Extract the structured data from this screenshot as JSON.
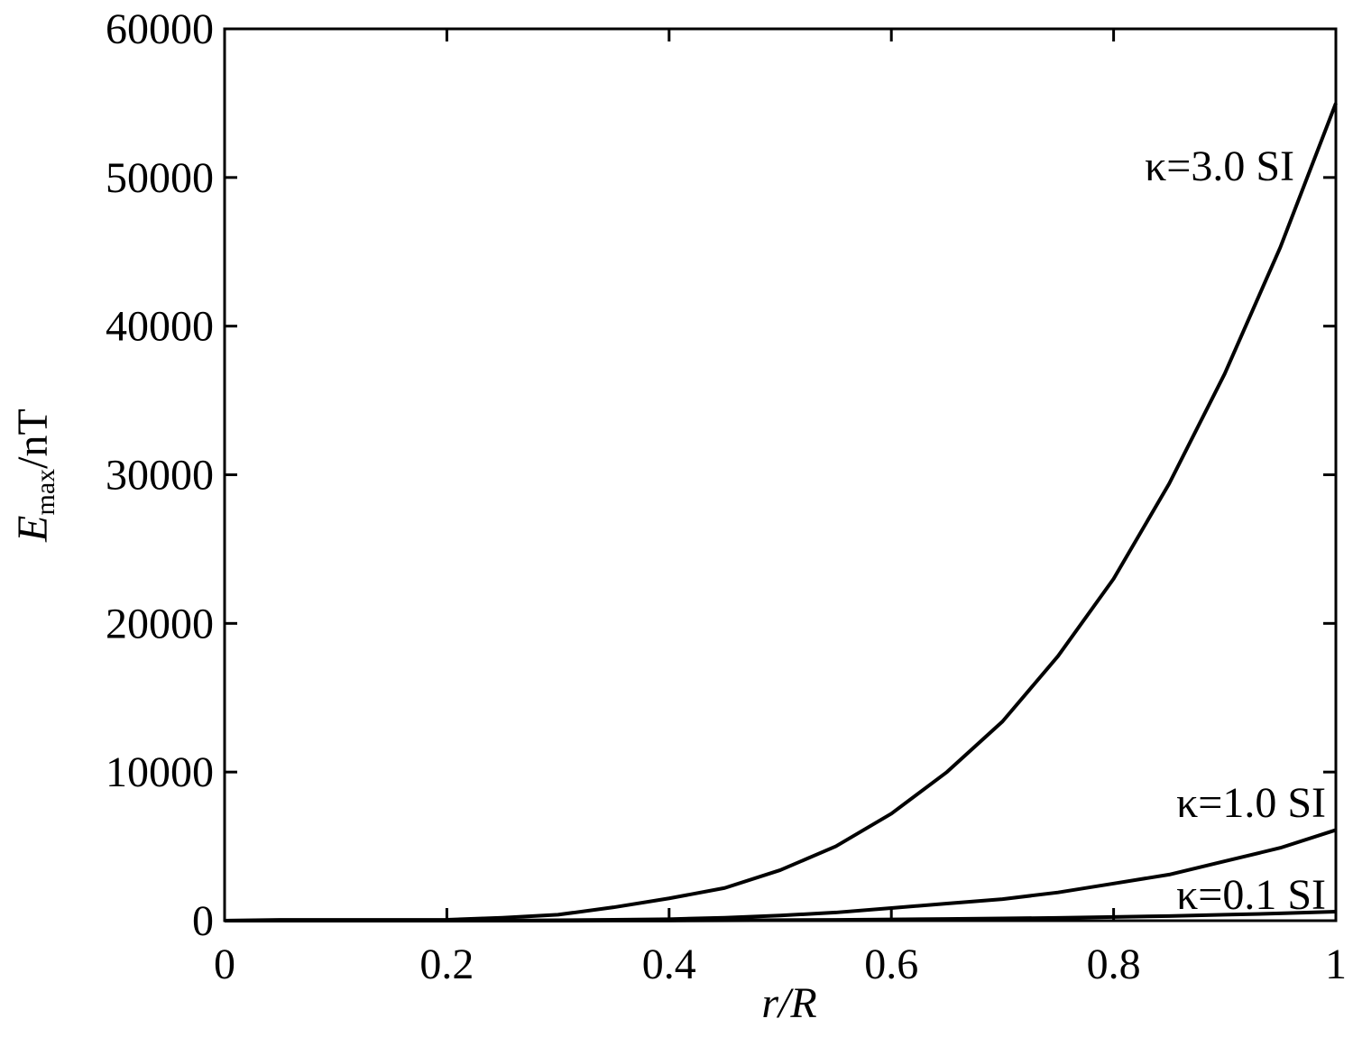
{
  "chart_data": {
    "type": "line",
    "ylabel": {
      "main": "E",
      "sub": "max",
      "unit": "/nT"
    },
    "xlabel": "r/R",
    "x": [
      0,
      0.05,
      0.1,
      0.15,
      0.2,
      0.25,
      0.3,
      0.35,
      0.4,
      0.45,
      0.5,
      0.55,
      0.6,
      0.65,
      0.7,
      0.75,
      0.8,
      0.85,
      0.9,
      0.95,
      1
    ],
    "series": [
      {
        "name": "κ=3.0 SI",
        "color": "#000000",
        "values": [
          0,
          50,
          50,
          50,
          60,
          200,
          400,
          900,
          1500,
          2200,
          3400,
          5000,
          7200,
          10000,
          13400,
          17800,
          23000,
          29400,
          36800,
          45300,
          55000
        ]
      },
      {
        "name": "κ=1.0 SI",
        "color": "#000000",
        "values": [
          0,
          0,
          0,
          0,
          0,
          10,
          30,
          60,
          100,
          200,
          350,
          550,
          850,
          1150,
          1450,
          1900,
          2500,
          3100,
          4000,
          4900,
          6100
        ]
      },
      {
        "name": "κ=0.1 SI",
        "color": "#000000",
        "values": [
          0,
          0,
          0,
          0,
          0,
          0,
          0,
          5,
          10,
          20,
          35,
          55,
          85,
          115,
          150,
          190,
          250,
          310,
          400,
          490,
          610
        ]
      }
    ],
    "xlim": [
      0,
      1
    ],
    "xticks": [
      0,
      0.2,
      0.4,
      0.6,
      0.8,
      1
    ],
    "ylim": [
      0,
      60000
    ],
    "yticks": [
      0,
      10000,
      20000,
      30000,
      40000,
      50000,
      60000
    ],
    "grid": false
  }
}
